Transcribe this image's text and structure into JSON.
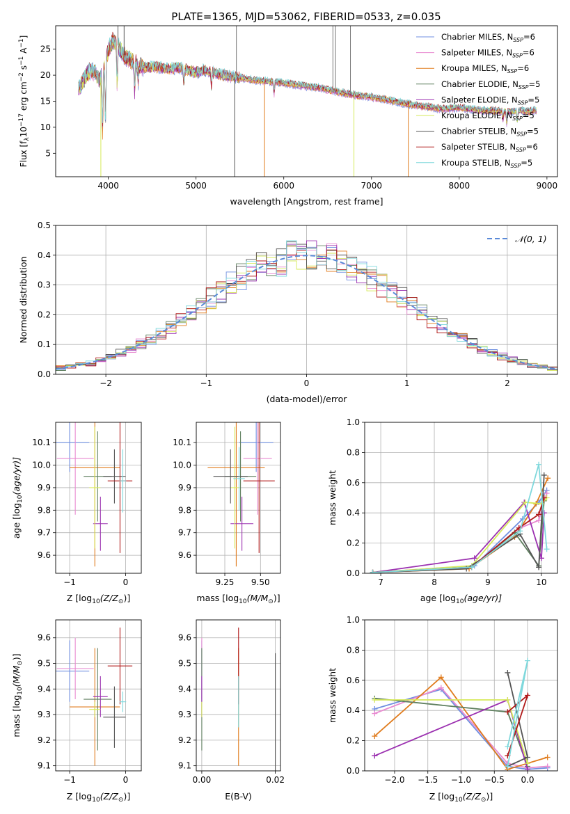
{
  "figure": {
    "title": "PLATE=1365, MJD=53062, FIBERID=0533, z=0.035"
  },
  "models": [
    {
      "name": "Chabrier MILES",
      "nssp": "6",
      "color": "#6f8fe0"
    },
    {
      "name": "Salpeter MILES",
      "nssp": "6",
      "color": "#e889d0"
    },
    {
      "name": "Kroupa MILES",
      "nssp": "6",
      "color": "#e07b1c"
    },
    {
      "name": "Chabrier ELODIE",
      "nssp": "5",
      "color": "#5f7f5f"
    },
    {
      "name": "Salpeter ELODIE",
      "nssp": "5",
      "color": "#9b30b0"
    },
    {
      "name": "Kroupa ELODIE",
      "nssp": "5",
      "color": "#d6ea5a"
    },
    {
      "name": "Chabrier STELIB",
      "nssp": "5",
      "color": "#555555"
    },
    {
      "name": "Salpeter STELIB",
      "nssp": "6",
      "color": "#b01818"
    },
    {
      "name": "Kroupa STELIB",
      "nssp": "5",
      "color": "#7fd8dc"
    }
  ],
  "chart_data": [
    {
      "id": "spectrum",
      "type": "line",
      "xlabel_main": "wavelength [Angstrom, rest frame]",
      "ylabel_main": "Flux [f",
      "ylabel_sub": "λ",
      "ylabel_mid": "10",
      "ylabel_exp": "−17",
      "ylabel_tail": " erg cm",
      "ylabel_exp2": "−2",
      "ylabel_tail2": " s",
      "ylabel_exp3": "−1",
      "ylabel_tail3": " A",
      "ylabel_exp4": "−1",
      "ylabel_end": "]",
      "legend_prefix": "N",
      "legend_sub": "SSP",
      "xlim": [
        3400,
        9120
      ],
      "ylim": [
        0.5,
        29.5
      ],
      "xticks": [
        "4000",
        "5000",
        "6000",
        "7000",
        "8000",
        "9000"
      ],
      "yticks": [
        "5",
        "10",
        "15",
        "20",
        "25"
      ],
      "anchors_x": [
        3650,
        3700,
        3750,
        3800,
        3850,
        3900,
        3950,
        4000,
        4050,
        4100,
        4150,
        4200,
        4300,
        4400,
        4500,
        4600,
        4700,
        4800,
        4900,
        5000,
        5100,
        5200,
        5300,
        5400,
        5500,
        5600,
        5700,
        5800,
        5900,
        6000,
        6100,
        6200,
        6300,
        6400,
        6500,
        6600,
        6700,
        6800,
        6900,
        7000,
        7100,
        7200,
        7300,
        7400,
        7500,
        7600,
        7700,
        7800,
        7900,
        8000,
        8100,
        8200,
        8300,
        8400,
        8500,
        8600,
        8700,
        8800,
        8850
      ],
      "anchors_y": [
        17,
        18.5,
        20,
        21,
        20.5,
        19,
        21,
        25,
        26.5,
        26,
        24.5,
        23.5,
        22.5,
        21.5,
        21.5,
        21.5,
        21.2,
        21.5,
        21,
        20.5,
        21,
        20.5,
        20,
        19.8,
        19.5,
        19.2,
        19,
        18.8,
        18.7,
        18.5,
        18.2,
        18,
        17.8,
        17.6,
        17.2,
        16.8,
        16.5,
        16.2,
        16,
        15.8,
        15.5,
        15.2,
        14.8,
        14.5,
        14.2,
        14,
        13.8,
        13.5,
        13.6,
        13.8,
        13.5,
        13.3,
        13.2,
        13.2,
        13,
        13,
        13.2,
        13,
        13.2
      ],
      "dips": [
        {
          "x": 3934,
          "y": 8
        },
        {
          "x": 3968,
          "y": 10
        },
        {
          "x": 4101,
          "y": 18
        },
        {
          "x": 4300,
          "y": 17
        },
        {
          "x": 4340,
          "y": 19
        },
        {
          "x": 4861,
          "y": 18.5
        },
        {
          "x": 5175,
          "y": 18
        },
        {
          "x": 5890,
          "y": 16.5
        },
        {
          "x": 8500,
          "y": 11.5
        },
        {
          "x": 8542,
          "y": 10.5
        },
        {
          "x": 8662,
          "y": 11
        }
      ],
      "spikes": [
        {
          "x": 5440,
          "color": "#555555",
          "down": true
        },
        {
          "x": 5460,
          "color": "#777777",
          "down": false
        },
        {
          "x": 5780,
          "color": "#e07b1c",
          "down": true
        },
        {
          "x": 6560,
          "color": "#777777",
          "down": false
        },
        {
          "x": 6590,
          "color": "#777777",
          "down": false
        },
        {
          "x": 6760,
          "color": "#777777",
          "down": false
        },
        {
          "x": 6800,
          "color": "#d6ea5a",
          "down": true
        },
        {
          "x": 7420,
          "color": "#e07b1c",
          "down": true
        },
        {
          "x": 3915,
          "color": "#d6ea5a",
          "down": true
        },
        {
          "x": 4110,
          "color": "#555555",
          "down": false
        },
        {
          "x": 4180,
          "color": "#555555",
          "down": false
        }
      ]
    },
    {
      "id": "residuals",
      "type": "bar",
      "xlabel": "(data-model)/error",
      "ylabel": "Normed distribution",
      "legend": "𝒩(0, 1)",
      "xlim": [
        -2.5,
        2.5
      ],
      "ylim": [
        0,
        0.5
      ],
      "xticks": [
        -2,
        -1,
        0,
        1,
        2
      ],
      "xticklabels": [
        "−2",
        "−1",
        "0",
        "1",
        "2"
      ],
      "yticks": [
        "0.0",
        "0.1",
        "0.2",
        "0.3",
        "0.4",
        "0.5"
      ],
      "bin_width": 0.1,
      "gaussian_color": "#5a8ad8"
    },
    {
      "id": "age_vs_Z",
      "type": "scatter",
      "xlabel": "Z [log",
      "xlabel_sub": "10",
      "xlabel_tail": "(Z/Z",
      "xlabel_sun": "⊙",
      "xlabel_end": ")]",
      "ylabel": "age  [log",
      "ylabel_sub": "10",
      "ylabel_tail": "(age/yr)]",
      "xlim": [
        -1.25,
        0.28
      ],
      "ylim": [
        9.52,
        10.19
      ],
      "xticks": [
        -1,
        0
      ],
      "xticklabels": [
        "−1",
        "0"
      ],
      "yticks": [
        9.6,
        9.7,
        9.8,
        9.9,
        10.0,
        10.1
      ],
      "yticklabels": [
        "9.6",
        "9.7",
        "9.8",
        "9.9",
        "10.0",
        "10.1"
      ],
      "points": [
        {
          "x": -1.0,
          "y": 10.1,
          "xerr": 0.35,
          "yerr": 0.13
        },
        {
          "x": -0.9,
          "y": 10.03,
          "xerr": 0.33,
          "yerr": 0.25
        },
        {
          "x": -0.55,
          "y": 9.99,
          "xerr": 0.45,
          "yerr": 0.44
        },
        {
          "x": -0.5,
          "y": 9.95,
          "xerr": 0.25,
          "yerr": 0.2
        },
        {
          "x": -0.45,
          "y": 9.74,
          "xerr": 0.13,
          "yerr": 0.12
        },
        {
          "x": -0.55,
          "y": 9.9,
          "xerr": 0.1,
          "yerr": 0.27
        },
        {
          "x": -0.2,
          "y": 9.95,
          "xerr": 0.2,
          "yerr": 0.12
        },
        {
          "x": -0.1,
          "y": 9.93,
          "xerr": 0.22,
          "yerr": 0.32
        },
        {
          "x": -0.05,
          "y": 9.93,
          "xerr": 0.06,
          "yerr": 0.14
        }
      ]
    },
    {
      "id": "age_vs_mass",
      "type": "scatter",
      "xlabel": "mass [log",
      "xlabel_sub": "10",
      "xlabel_tail": "(M/M",
      "xlabel_sun": "⊙",
      "xlabel_end": ")]",
      "xlim": [
        9.05,
        9.64
      ],
      "ylim": [
        9.52,
        10.19
      ],
      "xticks": [
        9.25,
        9.5
      ],
      "xticklabels": [
        "9.25",
        "9.50"
      ],
      "yticks": [
        9.6,
        9.7,
        9.8,
        9.9,
        10.0,
        10.1
      ],
      "yticklabels": [
        "9.6",
        "9.7",
        "9.8",
        "9.9",
        "10.0",
        "10.1"
      ],
      "points": [
        {
          "x": 9.47,
          "y": 10.1,
          "xerr": 0.12,
          "yerr": 0.13
        },
        {
          "x": 9.48,
          "y": 10.03,
          "xerr": 0.1,
          "yerr": 0.25
        },
        {
          "x": 9.33,
          "y": 9.99,
          "xerr": 0.2,
          "yerr": 0.44
        },
        {
          "x": 9.36,
          "y": 9.95,
          "xerr": 0.11,
          "yerr": 0.2
        },
        {
          "x": 9.37,
          "y": 9.74,
          "xerr": 0.08,
          "yerr": 0.12
        },
        {
          "x": 9.32,
          "y": 9.9,
          "xerr": 0.03,
          "yerr": 0.27
        },
        {
          "x": 9.29,
          "y": 9.95,
          "xerr": 0.12,
          "yerr": 0.12
        },
        {
          "x": 9.49,
          "y": 9.93,
          "xerr": 0.11,
          "yerr": 0.32
        },
        {
          "x": 9.35,
          "y": 9.94,
          "xerr": 0.04,
          "yerr": 0.14
        }
      ]
    },
    {
      "id": "weight_vs_age",
      "type": "line",
      "xlabel": "age  [log",
      "xlabel_sub": "10",
      "xlabel_tail": "(age/yr)]",
      "ylabel": "mass weight",
      "xlim": [
        6.7,
        10.3
      ],
      "ylim": [
        0,
        1.0
      ],
      "xticks": [
        7,
        8,
        9,
        10
      ],
      "xticklabels": [
        "7",
        "8",
        "9",
        "10"
      ],
      "yticks": [
        0,
        0.2,
        0.4,
        0.6,
        0.8,
        1.0
      ],
      "yticklabels": [
        "0.0",
        "0.2",
        "0.4",
        "0.6",
        "0.8",
        "1.0"
      ],
      "series": [
        {
          "x": [
            6.85,
            8.75,
            9.65,
            9.95,
            10.1
          ],
          "y": [
            0.005,
            0.05,
            0.36,
            0.47,
            0.55
          ]
        },
        {
          "x": [
            6.85,
            8.7,
            9.6,
            9.95,
            10.1
          ],
          "y": [
            0.005,
            0.04,
            0.3,
            0.35,
            0.53
          ]
        },
        {
          "x": [
            6.85,
            8.65,
            9.5,
            9.9,
            10.12
          ],
          "y": [
            0.005,
            0.03,
            0.24,
            0.46,
            0.63
          ]
        },
        {
          "x": [
            6.85,
            8.7,
            9.5,
            9.95,
            10.05
          ],
          "y": [
            0.005,
            0.04,
            0.27,
            0.05,
            0.48
          ]
        },
        {
          "x": [
            6.85,
            8.75,
            9.68,
            10.0,
            10.05
          ],
          "y": [
            0.005,
            0.1,
            0.47,
            0.1,
            0.4
          ]
        },
        {
          "x": [
            6.85,
            8.7,
            9.7,
            10.0,
            10.1
          ],
          "y": [
            0.005,
            0.05,
            0.47,
            0.46,
            0.5
          ]
        },
        {
          "x": [
            6.85,
            8.6,
            9.6,
            9.95,
            10.05
          ],
          "y": [
            0.005,
            0.03,
            0.26,
            0.04,
            0.65
          ]
        },
        {
          "x": [
            6.85,
            8.7,
            9.58,
            9.95,
            10.05
          ],
          "y": [
            0.005,
            0.04,
            0.3,
            0.39,
            0.5
          ]
        },
        {
          "x": [
            6.85,
            8.7,
            9.6,
            9.95,
            10.1
          ],
          "y": [
            0.005,
            0.04,
            0.28,
            0.72,
            0.16
          ]
        }
      ]
    },
    {
      "id": "mass_vs_Z",
      "type": "scatter",
      "xlabel": "Z [log",
      "xlabel_sub": "10",
      "xlabel_tail": "(Z/Z",
      "xlabel_sun": "⊙",
      "xlabel_end": ")]",
      "ylabel": "mass [log",
      "ylabel_sub": "10",
      "ylabel_tail": "(M/M",
      "ylabel_sun": "⊙",
      "ylabel_end": ")]",
      "xlim": [
        -1.25,
        0.28
      ],
      "ylim": [
        9.08,
        9.67
      ],
      "xticks": [
        -1,
        0
      ],
      "xticklabels": [
        "−1",
        "0"
      ],
      "yticks": [
        9.1,
        9.2,
        9.3,
        9.4,
        9.5,
        9.6
      ],
      "yticklabels": [
        "9.1",
        "9.2",
        "9.3",
        "9.4",
        "9.5",
        "9.6"
      ],
      "points": [
        {
          "x": -1.0,
          "y": 9.47,
          "xerr": 0.35,
          "yerr": 0.12
        },
        {
          "x": -0.9,
          "y": 9.48,
          "xerr": 0.33,
          "yerr": 0.12
        },
        {
          "x": -0.55,
          "y": 9.33,
          "xerr": 0.45,
          "yerr": 0.23
        },
        {
          "x": -0.5,
          "y": 9.36,
          "xerr": 0.25,
          "yerr": 0.2
        },
        {
          "x": -0.45,
          "y": 9.37,
          "xerr": 0.13,
          "yerr": 0.08
        },
        {
          "x": -0.55,
          "y": 9.32,
          "xerr": 0.1,
          "yerr": 0.03
        },
        {
          "x": -0.2,
          "y": 9.29,
          "xerr": 0.2,
          "yerr": 0.12
        },
        {
          "x": -0.1,
          "y": 9.49,
          "xerr": 0.22,
          "yerr": 0.15
        },
        {
          "x": -0.05,
          "y": 9.35,
          "xerr": 0.06,
          "yerr": 0.04
        }
      ]
    },
    {
      "id": "mass_vs_EBV",
      "type": "scatter",
      "xlabel": "E(B-V)",
      "xlim": [
        -0.0015,
        0.0214
      ],
      "ylim": [
        9.08,
        9.67
      ],
      "xticks": [
        0,
        0.02
      ],
      "xticklabels": [
        "0.00",
        "0.02"
      ],
      "yticks": [
        9.1,
        9.2,
        9.3,
        9.4,
        9.5,
        9.6
      ],
      "yticklabels": [
        "9.1",
        "9.2",
        "9.3",
        "9.4",
        "9.5",
        "9.6"
      ],
      "points": [
        {
          "x": 0.0,
          "y": 9.47,
          "xerr": 0,
          "yerr": 0.12
        },
        {
          "x": 0.0,
          "y": 9.48,
          "xerr": 0,
          "yerr": 0.12
        },
        {
          "x": 0.01,
          "y": 9.33,
          "xerr": 0,
          "yerr": 0.23
        },
        {
          "x": 0.0,
          "y": 9.36,
          "xerr": 0,
          "yerr": 0.2
        },
        {
          "x": 0.0,
          "y": 9.37,
          "xerr": 0,
          "yerr": 0.08
        },
        {
          "x": 0.0,
          "y": 9.32,
          "xerr": 0,
          "yerr": 0.03
        },
        {
          "x": 0.02,
          "y": 9.29,
          "xerr": 0,
          "yerr": 0.25
        },
        {
          "x": 0.01,
          "y": 9.49,
          "xerr": 0,
          "yerr": 0.15
        },
        {
          "x": 0.01,
          "y": 9.35,
          "xerr": 0,
          "yerr": 0.1
        }
      ]
    },
    {
      "id": "weight_vs_Z",
      "type": "line",
      "xlabel": "Z [log",
      "xlabel_sub": "10",
      "xlabel_tail": "(Z/Z",
      "xlabel_sun": "⊙",
      "xlabel_end": ")]",
      "ylabel": "mass weight",
      "xlim": [
        -2.45,
        0.45
      ],
      "ylim": [
        0,
        1.0
      ],
      "xticks": [
        -2.0,
        -1.5,
        -1.0,
        -0.5,
        0.0
      ],
      "xticklabels": [
        "−2.0",
        "−1.5",
        "−1.0",
        "−0.5",
        "0.0"
      ],
      "yticks": [
        0,
        0.2,
        0.4,
        0.6,
        0.8,
        1.0
      ],
      "yticklabels": [
        "0.0",
        "0.2",
        "0.4",
        "0.6",
        "0.8",
        "1.0"
      ],
      "series": [
        {
          "x": [
            -2.3,
            -1.3,
            -0.3,
            0.0,
            0.3
          ],
          "y": [
            0.41,
            0.54,
            0.03,
            0.01,
            0.02
          ]
        },
        {
          "x": [
            -2.3,
            -1.3,
            -0.3,
            0.0,
            0.3
          ],
          "y": [
            0.38,
            0.55,
            0.05,
            0.02,
            0.03
          ]
        },
        {
          "x": [
            -2.3,
            -1.3,
            -0.3,
            0.0,
            0.3
          ],
          "y": [
            0.23,
            0.62,
            0.01,
            0.05,
            0.09
          ]
        },
        {
          "x": [
            -2.3,
            -0.3,
            0.0
          ],
          "y": [
            0.48,
            0.39,
            0.03
          ]
        },
        {
          "x": [
            -2.3,
            -2.3,
            -0.3,
            0.0
          ],
          "y": [
            0.1,
            0.1,
            0.47,
            0.01
          ]
        },
        {
          "x": [
            -2.3,
            -0.3,
            0.0
          ],
          "y": [
            0.47,
            0.47,
            0.05
          ]
        },
        {
          "x": [
            -0.3,
            0.0,
            -0.3
          ],
          "y": [
            0.65,
            0.09,
            0.03
          ]
        },
        {
          "x": [
            -0.3,
            0.0,
            -0.3
          ],
          "y": [
            0.39,
            0.5,
            0.1
          ]
        },
        {
          "x": [
            -0.3,
            0.0,
            -0.3
          ],
          "y": [
            0.16,
            0.73,
            0.03
          ]
        }
      ]
    }
  ]
}
